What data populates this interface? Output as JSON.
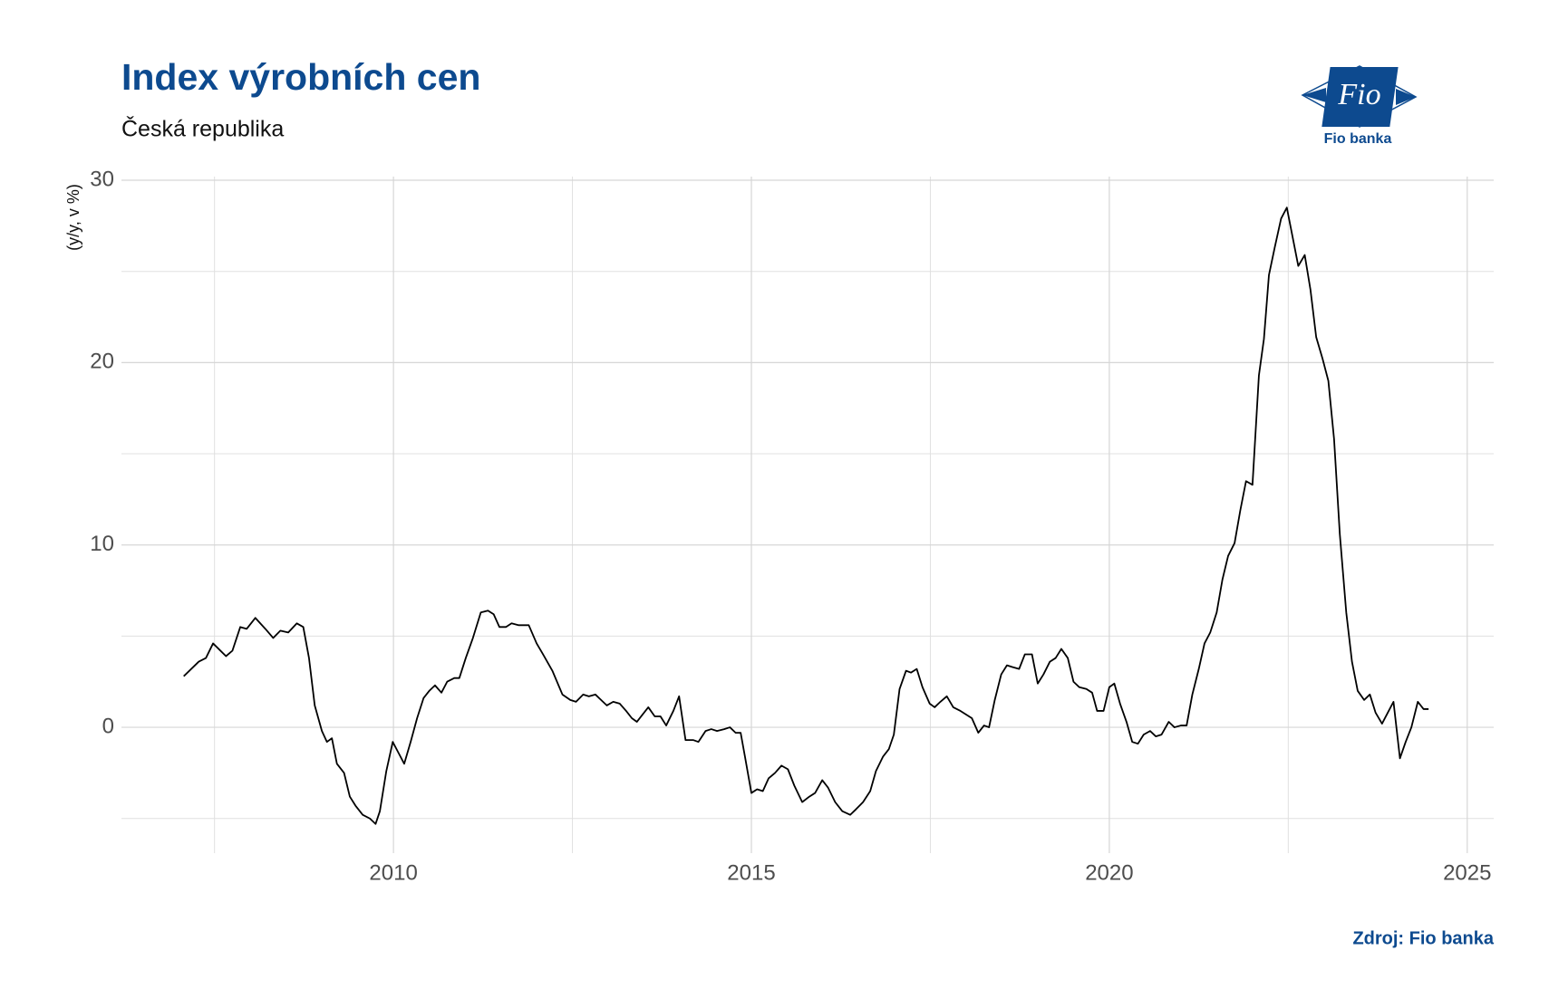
{
  "chart_data": {
    "type": "line",
    "title": "Index výrobních cen",
    "subtitle": "Česká republika",
    "y_label": "(y/y, v %)",
    "source": "Zdroj: Fio banka",
    "logo_mark": "Fio",
    "logo_name": "Fio banka",
    "color": "#000000",
    "grid": true,
    "xlim": [
      2006.2,
      2025.37
    ],
    "ylim": [
      -6.9,
      30.2
    ],
    "xticks": [
      2010,
      2015,
      2020,
      2025
    ],
    "xminorticks": [
      2007.5,
      2012.5,
      2017.5,
      2022.5
    ],
    "yticks": [
      0,
      10,
      20,
      30
    ],
    "yminorticks": [
      -5,
      5,
      15,
      25
    ],
    "x": [
      2007.07,
      2007.28,
      2007.38,
      2007.48,
      2007.66,
      2007.75,
      2007.86,
      2007.95,
      2008.07,
      2008.21,
      2008.32,
      2008.42,
      2008.53,
      2008.65,
      2008.74,
      2008.82,
      2008.9,
      2009.0,
      2009.07,
      2009.14,
      2009.21,
      2009.31,
      2009.39,
      2009.47,
      2009.57,
      2009.67,
      2009.75,
      2009.81,
      2009.9,
      2009.99,
      2010.07,
      2010.15,
      2010.24,
      2010.33,
      2010.42,
      2010.5,
      2010.58,
      2010.67,
      2010.75,
      2010.85,
      2010.92,
      2011.01,
      2011.11,
      2011.22,
      2011.32,
      2011.4,
      2011.48,
      2011.57,
      2011.65,
      2011.75,
      2011.89,
      2012.0,
      2012.09,
      2012.22,
      2012.36,
      2012.47,
      2012.55,
      2012.65,
      2012.73,
      2012.82,
      2012.9,
      2012.98,
      2013.07,
      2013.16,
      2013.25,
      2013.33,
      2013.4,
      2013.48,
      2013.56,
      2013.65,
      2013.73,
      2013.81,
      2013.91,
      2013.99,
      2014.08,
      2014.19,
      2014.26,
      2014.36,
      2014.44,
      2014.52,
      2014.62,
      2014.7,
      2014.78,
      2014.85,
      2014.91,
      2015.0,
      2015.08,
      2015.16,
      2015.24,
      2015.33,
      2015.42,
      2015.51,
      2015.6,
      2015.71,
      2015.81,
      2015.89,
      2015.99,
      2016.07,
      2016.17,
      2016.27,
      2016.38,
      2016.46,
      2016.56,
      2016.66,
      2016.74,
      2016.84,
      2016.92,
      2016.99,
      2017.07,
      2017.16,
      2017.23,
      2017.31,
      2017.39,
      2017.49,
      2017.56,
      2017.64,
      2017.73,
      2017.82,
      2017.92,
      2018.0,
      2018.08,
      2018.17,
      2018.25,
      2018.32,
      2018.4,
      2018.49,
      2018.57,
      2018.65,
      2018.74,
      2018.82,
      2018.92,
      2019.0,
      2019.08,
      2019.17,
      2019.25,
      2019.33,
      2019.42,
      2019.5,
      2019.58,
      2019.68,
      2019.76,
      2019.83,
      2019.92,
      2020.0,
      2020.07,
      2020.15,
      2020.24,
      2020.32,
      2020.4,
      2020.48,
      2020.57,
      2020.65,
      2020.73,
      2020.83,
      2020.91,
      2021.0,
      2021.08,
      2021.16,
      2021.25,
      2021.33,
      2021.41,
      2021.5,
      2021.58,
      2021.66,
      2021.75,
      2021.83,
      2021.91,
      2022.0,
      2022.09,
      2022.16,
      2022.23,
      2022.31,
      2022.4,
      2022.48,
      2022.56,
      2022.64,
      2022.73,
      2022.81,
      2022.89,
      2022.98,
      2023.06,
      2023.14,
      2023.22,
      2023.31,
      2023.39,
      2023.47,
      2023.56,
      2023.64,
      2023.72,
      2023.81,
      2023.89,
      2023.97,
      2024.06,
      2024.14,
      2024.22,
      2024.31,
      2024.39,
      2024.46
    ],
    "values": [
      2.8,
      3.6,
      3.8,
      4.6,
      3.9,
      4.2,
      5.5,
      5.4,
      6.0,
      5.4,
      4.9,
      5.3,
      5.2,
      5.7,
      5.5,
      3.8,
      1.2,
      -0.2,
      -0.8,
      -0.6,
      -2.0,
      -2.5,
      -3.8,
      -4.3,
      -4.8,
      -5.0,
      -5.3,
      -4.6,
      -2.4,
      -0.8,
      -1.4,
      -2.0,
      -0.8,
      0.5,
      1.6,
      2.0,
      2.3,
      1.9,
      2.5,
      2.7,
      2.7,
      3.8,
      4.9,
      6.3,
      6.4,
      6.2,
      5.5,
      5.5,
      5.7,
      5.6,
      5.6,
      4.6,
      4.0,
      3.1,
      1.8,
      1.5,
      1.4,
      1.8,
      1.7,
      1.8,
      1.5,
      1.2,
      1.4,
      1.3,
      0.9,
      0.5,
      0.3,
      0.7,
      1.1,
      0.6,
      0.6,
      0.1,
      0.9,
      1.7,
      -0.7,
      -0.7,
      -0.8,
      -0.2,
      -0.1,
      -0.2,
      -0.1,
      0.0,
      -0.3,
      -0.3,
      -1.6,
      -3.6,
      -3.4,
      -3.5,
      -2.8,
      -2.5,
      -2.1,
      -2.3,
      -3.2,
      -4.1,
      -3.8,
      -3.6,
      -2.9,
      -3.3,
      -4.1,
      -4.6,
      -4.8,
      -4.5,
      -4.1,
      -3.5,
      -2.4,
      -1.6,
      -1.2,
      -0.4,
      2.1,
      3.1,
      3.0,
      3.2,
      2.2,
      1.3,
      1.1,
      1.4,
      1.7,
      1.1,
      0.9,
      0.7,
      0.5,
      -0.3,
      0.1,
      0.0,
      1.5,
      2.9,
      3.4,
      3.3,
      3.2,
      4.0,
      4.0,
      2.4,
      2.9,
      3.6,
      3.8,
      4.3,
      3.8,
      2.5,
      2.2,
      2.1,
      1.9,
      0.9,
      0.9,
      2.2,
      2.4,
      1.3,
      0.3,
      -0.8,
      -0.9,
      -0.4,
      -0.2,
      -0.5,
      -0.4,
      0.3,
      0.0,
      0.1,
      0.1,
      1.8,
      3.2,
      4.6,
      5.2,
      6.3,
      8.1,
      9.4,
      10.1,
      11.9,
      13.5,
      13.3,
      19.3,
      21.3,
      24.8,
      26.3,
      27.9,
      28.5,
      26.9,
      25.3,
      25.9,
      24.0,
      21.4,
      20.2,
      19.0,
      15.8,
      10.6,
      6.3,
      3.6,
      2.0,
      1.5,
      1.8,
      0.8,
      0.2,
      0.8,
      1.4,
      -1.7,
      -0.8,
      0.0,
      1.4,
      1.0,
      1.0
    ]
  }
}
